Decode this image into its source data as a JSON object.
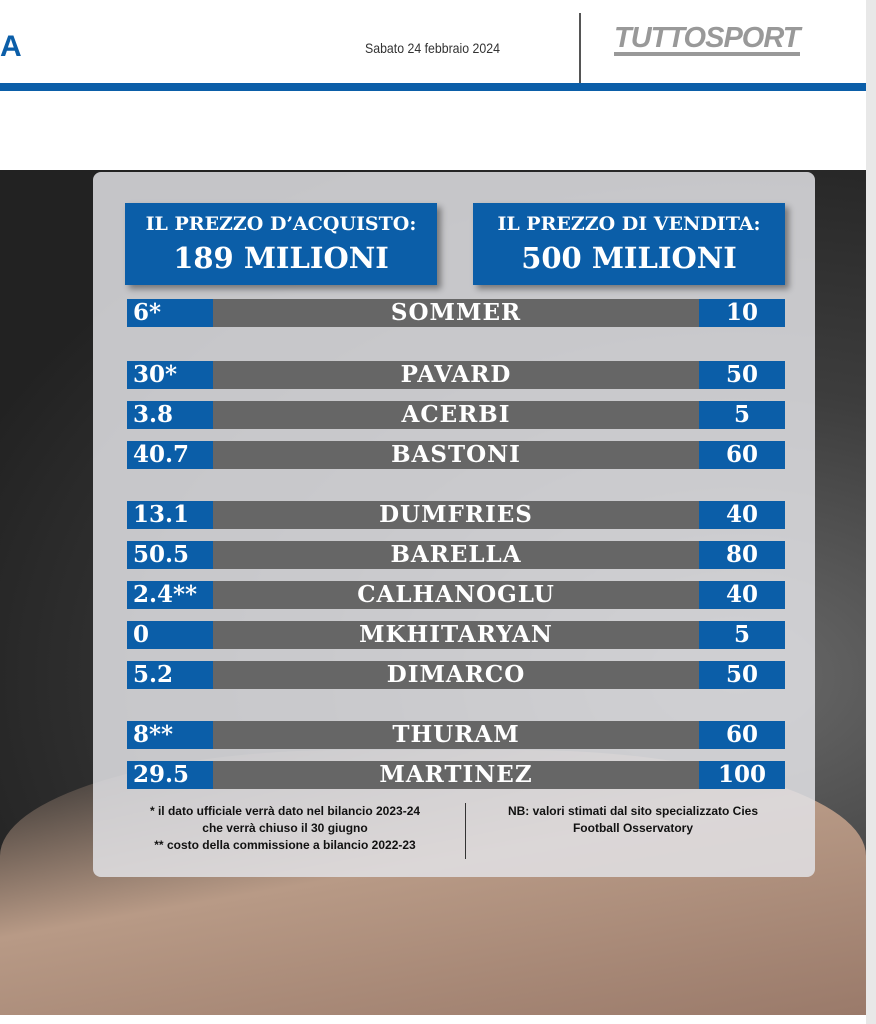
{
  "header": {
    "section_letter": "A",
    "date": "Sabato 24 febbraio 2024",
    "logo": "TUTTOSPORT",
    "accent": "#0b5ea8"
  },
  "graphic": {
    "purchase": {
      "title": "IL PREZZO D’ACQUISTO:",
      "value": "189 MILIONI"
    },
    "sale": {
      "title": "IL PREZZO DI VENDITA:",
      "value": "500 MILIONI"
    },
    "rows": [
      {
        "buy": "6*",
        "name": "SOMMER",
        "sell": "10"
      },
      {
        "buy": "30*",
        "name": "PAVARD",
        "sell": "50"
      },
      {
        "buy": "3.8",
        "name": "ACERBI",
        "sell": "5"
      },
      {
        "buy": "40.7",
        "name": "BASTONI",
        "sell": "60"
      },
      {
        "buy": "13.1",
        "name": "DUMFRIES",
        "sell": "40"
      },
      {
        "buy": "50.5",
        "name": "BARELLA",
        "sell": "80"
      },
      {
        "buy": "2.4**",
        "name": "CALHANOGLU",
        "sell": "40"
      },
      {
        "buy": "0",
        "name": "MKHITARYAN",
        "sell": "5"
      },
      {
        "buy": "5.2",
        "name": "DIMARCO",
        "sell": "50"
      },
      {
        "buy": "8**",
        "name": "THURAM",
        "sell": "60"
      },
      {
        "buy": "29.5",
        "name": "MARTINEZ",
        "sell": "100"
      }
    ],
    "note_left": [
      "* il dato ufficiale verrà dato nel bilancio 2023-24",
      "che verrà chiuso il 30 giugno",
      "** costo della commissione a bilancio 2022-23"
    ],
    "note_right": [
      "NB: valori stimati dal sito specializzato Cies",
      "Football Osservatory"
    ]
  }
}
